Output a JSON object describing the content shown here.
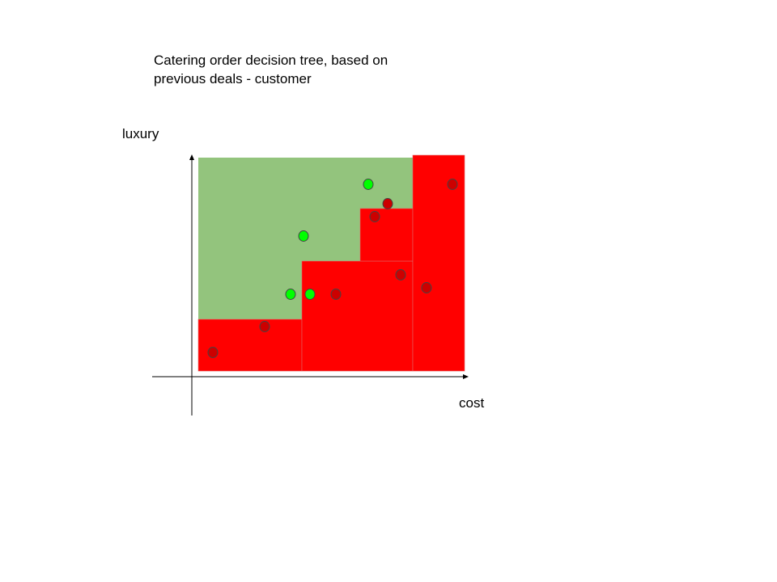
{
  "title": {
    "line1": "Catering order decision tree, based on",
    "line2": "previous deals - customer"
  },
  "axes": {
    "x_label": "cost",
    "y_label": "luxury"
  },
  "colors": {
    "accept_region": "#93c47d",
    "reject_region": "#ff0000",
    "accept_point": "#00ff00",
    "reject_point": "#cc0000",
    "point_stroke": "#444444"
  },
  "regions": [
    {
      "class": "accept",
      "name": "region-accept"
    },
    {
      "class": "reject",
      "name": "region-reject-low"
    },
    {
      "class": "reject",
      "name": "region-reject-mid"
    },
    {
      "class": "reject",
      "name": "region-reject-upper"
    },
    {
      "class": "reject",
      "name": "region-reject-right"
    }
  ],
  "points": [
    {
      "class": "reject"
    },
    {
      "class": "reject"
    },
    {
      "class": "accept"
    },
    {
      "class": "accept"
    },
    {
      "class": "accept"
    },
    {
      "class": "reject"
    },
    {
      "class": "accept"
    },
    {
      "class": "reject"
    },
    {
      "class": "reject"
    },
    {
      "class": "reject"
    },
    {
      "class": "reject"
    },
    {
      "class": "reject"
    }
  ]
}
